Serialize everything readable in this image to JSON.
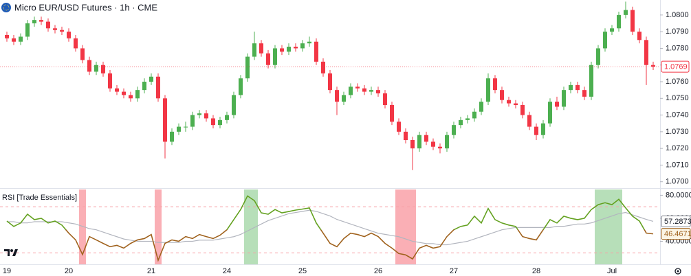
{
  "chart_data": [
    {
      "type": "candlestick",
      "title": "Micro EUR/USD Futures · 1h · CME",
      "categories": [
        "19",
        null,
        null,
        null,
        null,
        null,
        null,
        null,
        null,
        "20",
        null,
        null,
        null,
        null,
        null,
        null,
        null,
        null,
        null,
        null,
        null,
        "21",
        null,
        null,
        null,
        null,
        null,
        null,
        null,
        null,
        null,
        null,
        "24",
        null,
        null,
        null,
        null,
        null,
        null,
        null,
        null,
        null,
        null,
        "25",
        null,
        null,
        null,
        null,
        null,
        null,
        null,
        null,
        null,
        null,
        "26",
        null,
        null,
        null,
        null,
        null,
        null,
        null,
        null,
        null,
        null,
        "27",
        null,
        null,
        null,
        null,
        null,
        null,
        null,
        null,
        null,
        null,
        null,
        "28",
        null,
        null,
        null,
        null,
        null,
        null,
        null,
        null,
        null,
        null,
        "Jul",
        null,
        null,
        null,
        null,
        null,
        null
      ],
      "open": [
        1.0788,
        1.0786,
        1.0784,
        1.0787,
        1.0795,
        1.0797,
        1.0796,
        1.0792,
        1.0791,
        1.079,
        1.0786,
        1.078,
        1.0773,
        1.0766,
        1.077,
        1.0765,
        1.0756,
        1.0754,
        1.0752,
        1.075,
        1.0755,
        1.076,
        1.0763,
        1.075,
        1.0724,
        1.073,
        1.0733,
        1.0733,
        1.074,
        1.0741,
        1.0738,
        1.0734,
        1.0737,
        1.074,
        1.0752,
        1.0762,
        1.0775,
        1.0783,
        1.0777,
        1.077,
        1.078,
        1.0778,
        1.0781,
        1.078,
        1.0783,
        1.0784,
        1.0772,
        1.0765,
        1.0755,
        1.0748,
        1.0752,
        1.0757,
        1.0756,
        1.0754,
        1.0755,
        1.0753,
        1.0746,
        1.0736,
        1.073,
        1.0725,
        1.072,
        1.0728,
        1.0724,
        1.0721,
        1.072,
        1.0728,
        1.0734,
        1.0737,
        1.0738,
        1.0742,
        1.0748,
        1.0762,
        1.0755,
        1.0749,
        1.0747,
        1.0746,
        1.074,
        1.0733,
        1.0728,
        1.0735,
        1.0748,
        1.0745,
        1.0755,
        1.0758,
        1.0755,
        1.0751,
        1.077,
        1.078,
        1.079,
        1.0792,
        1.08,
        1.0803,
        1.079,
        1.0785,
        1.077
      ],
      "high": [
        1.079,
        1.0788,
        1.0789,
        1.0797,
        1.0799,
        1.0799,
        1.0798,
        1.0794,
        1.0793,
        1.0792,
        1.0788,
        1.0782,
        1.0775,
        1.0772,
        1.0772,
        1.0767,
        1.0758,
        1.0756,
        1.0754,
        1.0757,
        1.0762,
        1.0765,
        1.0765,
        1.0752,
        1.0732,
        1.0735,
        1.0736,
        1.0742,
        1.0743,
        1.0743,
        1.074,
        1.0739,
        1.0742,
        1.0754,
        1.0764,
        1.0777,
        1.079,
        1.0785,
        1.0779,
        1.0782,
        1.0782,
        1.0783,
        1.0783,
        1.0785,
        1.0787,
        1.0786,
        1.0774,
        1.0767,
        1.0757,
        1.0754,
        1.0759,
        1.0759,
        1.0758,
        1.0757,
        1.0757,
        1.0755,
        1.0748,
        1.0738,
        1.0732,
        1.0727,
        1.073,
        1.073,
        1.0726,
        1.0723,
        1.073,
        1.0736,
        1.0739,
        1.074,
        1.0744,
        1.075,
        1.0765,
        1.0764,
        1.0757,
        1.0751,
        1.0749,
        1.0748,
        1.0742,
        1.0735,
        1.0737,
        1.075,
        1.0751,
        1.0757,
        1.076,
        1.076,
        1.0757,
        1.0772,
        1.0782,
        1.0792,
        1.0794,
        1.0802,
        1.0808,
        1.0805,
        1.0792,
        1.0787,
        1.0772
      ],
      "low": [
        1.0784,
        1.0782,
        1.0782,
        1.0785,
        1.0793,
        1.0794,
        1.079,
        1.0789,
        1.0788,
        1.0784,
        1.0778,
        1.0771,
        1.0764,
        1.0764,
        1.0763,
        1.0754,
        1.0752,
        1.075,
        1.0748,
        1.0748,
        1.0753,
        1.0758,
        1.0748,
        1.0714,
        1.0722,
        1.0728,
        1.073,
        1.0731,
        1.0738,
        1.0736,
        1.0732,
        1.0732,
        1.0735,
        1.0738,
        1.075,
        1.076,
        1.0773,
        1.0775,
        1.0768,
        1.0768,
        1.0776,
        1.0776,
        1.0778,
        1.0778,
        1.0781,
        1.077,
        1.0763,
        1.0753,
        1.074,
        1.0746,
        1.075,
        1.0754,
        1.0752,
        1.0752,
        1.0751,
        1.0744,
        1.0734,
        1.0728,
        1.0723,
        1.0707,
        1.0718,
        1.0722,
        1.0719,
        1.0717,
        1.0718,
        1.0726,
        1.0732,
        1.0735,
        1.0736,
        1.074,
        1.0746,
        1.0753,
        1.0747,
        1.0745,
        1.0744,
        1.0738,
        1.0731,
        1.0725,
        1.0726,
        1.0733,
        1.0743,
        1.0743,
        1.0753,
        1.0753,
        1.0749,
        1.0749,
        1.0768,
        1.0778,
        1.0788,
        1.079,
        1.0798,
        1.0788,
        1.0783,
        1.0758,
        1.0767
      ],
      "close": [
        1.0786,
        1.0784,
        1.0787,
        1.0795,
        1.0797,
        1.0796,
        1.0792,
        1.0791,
        1.079,
        1.0786,
        1.078,
        1.0773,
        1.0766,
        1.077,
        1.0765,
        1.0756,
        1.0754,
        1.0752,
        1.075,
        1.0755,
        1.076,
        1.0763,
        1.075,
        1.0724,
        1.073,
        1.0733,
        1.0733,
        1.074,
        1.0741,
        1.0738,
        1.0734,
        1.0737,
        1.074,
        1.0752,
        1.0762,
        1.0775,
        1.0783,
        1.0777,
        1.077,
        1.078,
        1.0778,
        1.0781,
        1.078,
        1.0783,
        1.0784,
        1.0772,
        1.0765,
        1.0755,
        1.0748,
        1.0752,
        1.0757,
        1.0756,
        1.0754,
        1.0755,
        1.0753,
        1.0746,
        1.0736,
        1.073,
        1.0725,
        1.072,
        1.0728,
        1.0724,
        1.0721,
        1.072,
        1.0728,
        1.0734,
        1.0737,
        1.0738,
        1.0742,
        1.0748,
        1.0762,
        1.0755,
        1.0749,
        1.0747,
        1.0746,
        1.074,
        1.0733,
        1.0728,
        1.0735,
        1.0748,
        1.0745,
        1.0755,
        1.0758,
        1.0755,
        1.0751,
        1.077,
        1.078,
        1.079,
        1.0792,
        1.08,
        1.0803,
        1.079,
        1.0785,
        1.077,
        1.0769
      ],
      "up_color": "#4caf50",
      "down_color": "#f23645",
      "ylim": [
        1.0697,
        1.0809
      ],
      "yticks": [
        {
          "value": 1.07,
          "label": "1.0700"
        },
        {
          "value": 1.071,
          "label": "1.0710"
        },
        {
          "value": 1.072,
          "label": "1.0720"
        },
        {
          "value": 1.073,
          "label": "1.0730"
        },
        {
          "value": 1.074,
          "label": "1.0740"
        },
        {
          "value": 1.075,
          "label": "1.0750"
        },
        {
          "value": 1.076,
          "label": "1.0760"
        },
        {
          "value": 1.077,
          "label": "1.0770"
        },
        {
          "value": 1.078,
          "label": "1.0780"
        },
        {
          "value": 1.079,
          "label": "1.0790"
        },
        {
          "value": 1.08,
          "label": "1.0800"
        }
      ]
    },
    {
      "type": "line",
      "title": "RSI [Trade Essentials]",
      "series": [
        {
          "color": "#63a11f",
          "color_below": "#a0621d",
          "midline": 50,
          "values": [
            57.6,
            52.9,
            55.9,
            63.5,
            58.8,
            60.0,
            55.9,
            57.6,
            54.1,
            47.1,
            41.2,
            28.5,
            44.1,
            41.2,
            38.2,
            35.3,
            36.5,
            34.1,
            38.2,
            41.2,
            42.4,
            45.9,
            23.5,
            38.2,
            41.2,
            40.0,
            44.1,
            42.4,
            45.9,
            44.1,
            42.4,
            45.3,
            50.0,
            58.8,
            67.6,
            79.4,
            75.3,
            64.7,
            63.5,
            67.6,
            64.7,
            65.9,
            67.1,
            68.0,
            69.0,
            55.9,
            47.1,
            38.2,
            35.3,
            42.4,
            47.1,
            45.9,
            44.1,
            47.1,
            44.1,
            38.2,
            34.1,
            29.4,
            28.2,
            24.7,
            34.1,
            36.5,
            34.1,
            35.3,
            44.1,
            50.0,
            52.9,
            54.1,
            61.8,
            55.9,
            68.5,
            58.8,
            55.9,
            54.1,
            52.9,
            44.1,
            42.4,
            41.2,
            50.0,
            58.8,
            55.9,
            61.8,
            60.0,
            58.8,
            60.0,
            67.6,
            71.8,
            73.5,
            71.8,
            76.5,
            69.0,
            61.8,
            57.6,
            47.1,
            46.4671
          ]
        },
        {
          "color": "#b2b5be",
          "values": [
            57,
            57,
            56,
            56,
            57,
            57,
            57,
            57,
            57,
            56,
            55,
            53,
            51,
            50,
            48,
            46,
            44,
            42,
            41,
            40,
            40,
            40,
            39,
            39,
            39,
            39,
            40,
            40,
            41,
            41,
            41,
            42,
            43,
            44,
            46,
            49,
            52,
            55,
            58,
            60,
            62,
            64,
            65,
            66,
            67,
            66,
            64,
            62,
            59,
            57,
            55,
            53,
            51,
            49,
            47,
            46,
            45,
            44,
            42,
            40,
            39,
            38,
            38,
            37,
            37,
            38,
            39,
            40,
            42,
            44,
            46,
            48,
            50,
            51,
            52,
            52,
            52,
            52,
            52,
            52,
            53,
            53,
            54,
            55,
            55,
            56,
            58,
            60,
            62,
            64,
            65,
            63,
            61,
            59,
            57.2873
          ]
        }
      ],
      "levels": [
        70,
        30
      ],
      "overbought_color": "#4caf50",
      "oversold_color": "#f23645",
      "ylim": [
        20,
        85
      ],
      "yticks": [
        {
          "value": 80,
          "label": "80.0000"
        },
        {
          "value": 60,
          "label": "60.0000"
        },
        {
          "value": 40,
          "label": "40.0000"
        }
      ]
    }
  ]
}
